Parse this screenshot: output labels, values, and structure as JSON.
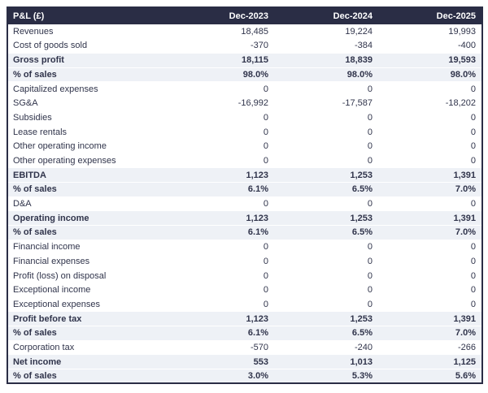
{
  "colors": {
    "header_bg": "#2a2d45",
    "header_text": "#ffffff",
    "highlight_bg": "#eef1f6",
    "text": "#30344b",
    "border": "#2a2d45"
  },
  "table": {
    "header": {
      "label": "P&L (£)",
      "columns": [
        "Dec-2023",
        "Dec-2024",
        "Dec-2025"
      ]
    },
    "rows": [
      {
        "label": "Revenues",
        "values": [
          "18,485",
          "19,224",
          "19,993"
        ],
        "emphasis": false
      },
      {
        "label": "Cost of goods sold",
        "values": [
          "-370",
          "-384",
          "-400"
        ],
        "emphasis": false
      },
      {
        "label": "Gross profit",
        "values": [
          "18,115",
          "18,839",
          "19,593"
        ],
        "emphasis": true
      },
      {
        "label": "% of sales",
        "values": [
          "98.0%",
          "98.0%",
          "98.0%"
        ],
        "emphasis": true
      },
      {
        "label": "Capitalized expenses",
        "values": [
          "0",
          "0",
          "0"
        ],
        "emphasis": false
      },
      {
        "label": "SG&A",
        "values": [
          "-16,992",
          "-17,587",
          "-18,202"
        ],
        "emphasis": false
      },
      {
        "label": "Subsidies",
        "values": [
          "0",
          "0",
          "0"
        ],
        "emphasis": false
      },
      {
        "label": "Lease rentals",
        "values": [
          "0",
          "0",
          "0"
        ],
        "emphasis": false
      },
      {
        "label": "Other operating income",
        "values": [
          "0",
          "0",
          "0"
        ],
        "emphasis": false
      },
      {
        "label": "Other operating expenses",
        "values": [
          "0",
          "0",
          "0"
        ],
        "emphasis": false
      },
      {
        "label": "EBITDA",
        "values": [
          "1,123",
          "1,253",
          "1,391"
        ],
        "emphasis": true
      },
      {
        "label": "% of sales",
        "values": [
          "6.1%",
          "6.5%",
          "7.0%"
        ],
        "emphasis": true
      },
      {
        "label": "D&A",
        "values": [
          "0",
          "0",
          "0"
        ],
        "emphasis": false
      },
      {
        "label": "Operating income",
        "values": [
          "1,123",
          "1,253",
          "1,391"
        ],
        "emphasis": true
      },
      {
        "label": "% of sales",
        "values": [
          "6.1%",
          "6.5%",
          "7.0%"
        ],
        "emphasis": true
      },
      {
        "label": "Financial income",
        "values": [
          "0",
          "0",
          "0"
        ],
        "emphasis": false
      },
      {
        "label": "Financial expenses",
        "values": [
          "0",
          "0",
          "0"
        ],
        "emphasis": false
      },
      {
        "label": "Profit (loss) on disposal",
        "values": [
          "0",
          "0",
          "0"
        ],
        "emphasis": false
      },
      {
        "label": "Exceptional income",
        "values": [
          "0",
          "0",
          "0"
        ],
        "emphasis": false
      },
      {
        "label": "Exceptional expenses",
        "values": [
          "0",
          "0",
          "0"
        ],
        "emphasis": false
      },
      {
        "label": "Profit before tax",
        "values": [
          "1,123",
          "1,253",
          "1,391"
        ],
        "emphasis": true
      },
      {
        "label": "% of sales",
        "values": [
          "6.1%",
          "6.5%",
          "7.0%"
        ],
        "emphasis": true
      },
      {
        "label": "Corporation tax",
        "values": [
          "-570",
          "-240",
          "-266"
        ],
        "emphasis": false
      },
      {
        "label": "Net income",
        "values": [
          "553",
          "1,013",
          "1,125"
        ],
        "emphasis": true
      },
      {
        "label": "% of sales",
        "values": [
          "3.0%",
          "5.3%",
          "5.6%"
        ],
        "emphasis": true
      }
    ]
  }
}
